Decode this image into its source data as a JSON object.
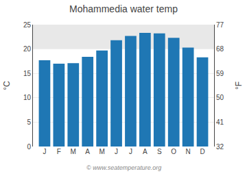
{
  "chart_data": {
    "type": "bar",
    "title": "Mohammedia water temp",
    "categories": [
      "J",
      "F",
      "M",
      "A",
      "M",
      "J",
      "J",
      "A",
      "S",
      "O",
      "N",
      "D"
    ],
    "values": [
      17.7,
      17.0,
      17.1,
      18.4,
      19.7,
      21.8,
      22.7,
      23.3,
      23.2,
      22.3,
      20.3,
      18.3
    ],
    "ylabel": "°C",
    "y2label": "°F",
    "ylim": [
      0,
      25
    ],
    "yticks": [
      0,
      5,
      10,
      15,
      20,
      25
    ],
    "y2lim": [
      32,
      77
    ],
    "y2ticks": [
      32,
      41,
      50,
      59,
      68,
      77
    ],
    "grid": true,
    "highlight_band": [
      20,
      25
    ],
    "annotations": [
      "© www.seatemperature.org"
    ]
  }
}
